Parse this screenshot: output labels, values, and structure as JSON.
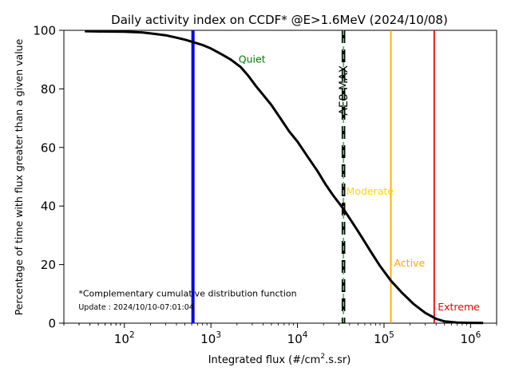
{
  "chart_data": {
    "type": "line",
    "title": "Daily activity index on CCDF* @E>1.6MeV (2024/10/08)",
    "xlabel_main": "Integrated flux (#/cm",
    "xlabel_sup": "2",
    "xlabel_tail": ".s.sr)",
    "ylabel": "Percentage of time with flux greater than a given value",
    "x_scale": "log",
    "xlim": [
      20,
      2000000
    ],
    "ylim": [
      0,
      100
    ],
    "yticks": [
      0,
      20,
      40,
      60,
      80,
      100
    ],
    "xticks": [
      {
        "value": 100,
        "base": "10",
        "exp": "2"
      },
      {
        "value": 1000,
        "base": "10",
        "exp": "3"
      },
      {
        "value": 10000,
        "base": "10",
        "exp": "4"
      },
      {
        "value": 100000,
        "base": "10",
        "exp": "5"
      },
      {
        "value": 1000000,
        "base": "10",
        "exp": "6"
      }
    ],
    "grid": false,
    "series": [
      {
        "color": "#000000",
        "points": [
          [
            35,
            99.7
          ],
          [
            60,
            99.6
          ],
          [
            100,
            99.5
          ],
          [
            160,
            99.3
          ],
          [
            220,
            98.8
          ],
          [
            300,
            98.3
          ],
          [
            400,
            97.5
          ],
          [
            500,
            96.8
          ],
          [
            620,
            96.0
          ],
          [
            800,
            95.0
          ],
          [
            1000,
            93.8
          ],
          [
            1300,
            92.0
          ],
          [
            1700,
            90.0
          ],
          [
            2200,
            87.5
          ],
          [
            2700,
            84.5
          ],
          [
            3300,
            81.0
          ],
          [
            4000,
            78.0
          ],
          [
            5000,
            74.5
          ],
          [
            6500,
            69.5
          ],
          [
            8000,
            65.5
          ],
          [
            10000,
            62.0
          ],
          [
            13000,
            57.0
          ],
          [
            17000,
            52.0
          ],
          [
            21000,
            47.5
          ],
          [
            26000,
            43.5
          ],
          [
            34000,
            39.0
          ],
          [
            45000,
            33.5
          ],
          [
            55000,
            29.5
          ],
          [
            70000,
            24.5
          ],
          [
            90000,
            19.5
          ],
          [
            120000,
            14.5
          ],
          [
            160000,
            10.5
          ],
          [
            220000,
            6.5
          ],
          [
            300000,
            3.5
          ],
          [
            400000,
            1.5
          ],
          [
            500000,
            0.6
          ],
          [
            700000,
            0.2
          ],
          [
            1000000,
            0.1
          ],
          [
            1400000,
            0.05
          ]
        ]
      }
    ],
    "vlines": [
      {
        "x": 620,
        "color": "#0000ee",
        "style": "solid",
        "width": "thick"
      },
      {
        "x": 34000,
        "color": "#000000",
        "style": "dashed",
        "width": "thick",
        "label": "AE8 MAX",
        "label_color": "#000000"
      },
      {
        "x": 34000,
        "color": "#5cb85c",
        "style": "dashed",
        "width": "thin"
      },
      {
        "x": 120000,
        "color": "#ffa500",
        "style": "solid",
        "width": "thin"
      },
      {
        "x": 380000,
        "color": "#ee0000",
        "style": "solid",
        "width": "thin"
      }
    ],
    "zone_labels": [
      {
        "text": "Quiet",
        "x": 2000,
        "y": 90,
        "color": "#008000"
      },
      {
        "text": "Moderate",
        "x": 35000,
        "y": 45,
        "color": "#ffd700"
      },
      {
        "text": "Active",
        "x": 125000,
        "y": 20.5,
        "color": "#ffa500"
      },
      {
        "text": "Extreme",
        "x": 400000,
        "y": 5.5,
        "color": "#ee0000"
      }
    ],
    "annotations": [
      {
        "text": "*Complementary cumulative distribution function",
        "x": 35,
        "y": 10
      },
      {
        "text": "Update : 2024/10/10-07:01:04",
        "x": 35,
        "y": 5.5
      }
    ]
  }
}
